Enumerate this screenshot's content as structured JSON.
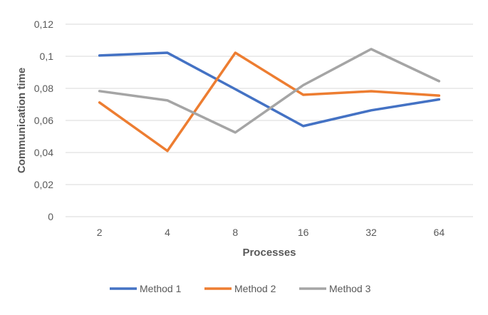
{
  "chart_data": {
    "type": "line",
    "categories": [
      "2",
      "4",
      "8",
      "16",
      "32",
      "64"
    ],
    "series": [
      {
        "name": "Method 1",
        "color": "#4472C4",
        "values": [
          0.1005,
          0.1022,
          0.0795,
          0.0565,
          0.0663,
          0.0731
        ]
      },
      {
        "name": "Method 2",
        "color": "#ED7D31",
        "values": [
          0.0712,
          0.041,
          0.1022,
          0.076,
          0.0782,
          0.0755
        ]
      },
      {
        "name": "Method 3",
        "color": "#A5A5A5",
        "values": [
          0.0783,
          0.0725,
          0.0525,
          0.082,
          0.1045,
          0.0845
        ]
      }
    ],
    "y_ticks": [
      "0",
      "0,02",
      "0,04",
      "0,06",
      "0,08",
      "0,1",
      "0,12"
    ],
    "ylim": [
      0,
      0.12
    ],
    "xlabel": "Processes",
    "ylabel": "Communication time",
    "grid": true,
    "legend_position": "bottom"
  }
}
